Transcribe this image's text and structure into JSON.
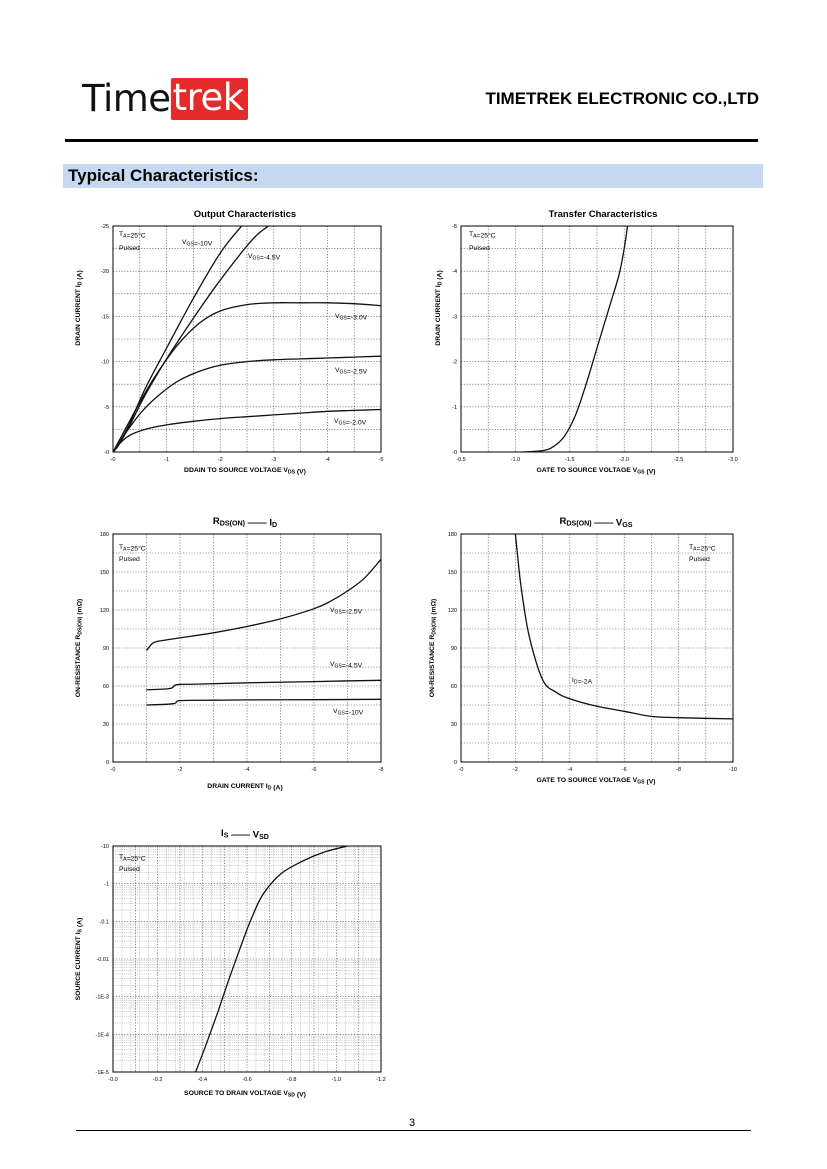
{
  "header": {
    "logo_part1": "Time",
    "logo_part2": "trek",
    "company": "TIMETREK ELECTRONIC CO.,LTD"
  },
  "section_title": "Typical Characteristics:",
  "page_number": "3",
  "chart_data": [
    {
      "type": "line",
      "title": "Output Characteristics",
      "xlabel": "DDAIN TO SOURCE VOLTAGE   V_DS   (V)",
      "ylabel": "DRAIN CURRENT   I_D   (A)",
      "xlim": [
        0,
        -5
      ],
      "ylim": [
        0,
        -25
      ],
      "xticks": [
        "-0",
        "-1",
        "-2",
        "-3",
        "-4",
        "-5"
      ],
      "yticks": [
        "-0",
        "-5",
        "-10",
        "-15",
        "-20",
        "-25"
      ],
      "annotations": [
        "T_A=25°C",
        "Pulsed"
      ],
      "series": [
        {
          "name": "V_GS=-10V",
          "x": [
            0,
            -0.1,
            -0.3,
            -0.6,
            -1.0,
            -1.5,
            -2.0,
            -2.4
          ],
          "y": [
            0,
            -0.8,
            -3,
            -7,
            -11.5,
            -17,
            -22,
            -25
          ]
        },
        {
          "name": "V_GS=-4.5V",
          "x": [
            0,
            -0.1,
            -0.3,
            -0.6,
            -1.0,
            -1.5,
            -2.0,
            -2.6,
            -2.9
          ],
          "y": [
            0,
            -0.7,
            -2.8,
            -6.3,
            -10.3,
            -14.8,
            -19,
            -23.5,
            -25
          ]
        },
        {
          "name": "V_GS=-3.0V",
          "x": [
            0,
            -0.2,
            -0.5,
            -0.8,
            -1.2,
            -1.6,
            -2.0,
            -2.5,
            -3.0,
            -3.5,
            -4.0,
            -4.5,
            -5.0
          ],
          "y": [
            0,
            -2.2,
            -5.5,
            -8.5,
            -11.8,
            -14.2,
            -15.6,
            -16.3,
            -16.5,
            -16.5,
            -16.5,
            -16.4,
            -16.2
          ]
        },
        {
          "name": "V_GS=-2.5V",
          "x": [
            0,
            -0.2,
            -0.5,
            -0.8,
            -1.2,
            -1.6,
            -2.0,
            -2.5,
            -3.0,
            -3.5,
            -4.0,
            -4.5,
            -5.0
          ],
          "y": [
            0,
            -1.8,
            -4.2,
            -6.0,
            -7.8,
            -8.9,
            -9.6,
            -10.0,
            -10.2,
            -10.3,
            -10.4,
            -10.5,
            -10.6
          ]
        },
        {
          "name": "V_GS=-2.0V",
          "x": [
            0,
            -0.1,
            -0.3,
            -0.6,
            -1.0,
            -1.5,
            -2.0,
            -2.5,
            -3.0,
            -3.5,
            -4.0,
            -4.5,
            -5.0
          ],
          "y": [
            0,
            -0.8,
            -1.8,
            -2.5,
            -3.0,
            -3.4,
            -3.7,
            -3.9,
            -4.1,
            -4.3,
            -4.5,
            -4.6,
            -4.7
          ]
        }
      ]
    },
    {
      "type": "line",
      "title": "Transfer Characteristics",
      "xlabel": "GATE TO SOURCE VOLTAGE   V_GS   (V)",
      "ylabel": "DRAIN CURRENT   I_D   (A)",
      "xlim": [
        -0.5,
        -3.0
      ],
      "ylim": [
        0,
        -5
      ],
      "xticks": [
        "-0.5",
        "-1.0",
        "-1.5",
        "-2.0",
        "-2.5",
        "-3.0"
      ],
      "yticks": [
        "-0",
        "-1",
        "-2",
        "-3",
        "-4",
        "-5"
      ],
      "annotations": [
        "T_A=25°C",
        "Pulsed"
      ],
      "series": [
        {
          "name": "",
          "x": [
            -1.05,
            -1.25,
            -1.35,
            -1.45,
            -1.55,
            -1.65,
            -1.75,
            -1.85,
            -1.95,
            -2.0,
            -2.03
          ],
          "y": [
            0,
            -0.03,
            -0.12,
            -0.35,
            -0.8,
            -1.5,
            -2.3,
            -3.1,
            -3.9,
            -4.5,
            -5.0
          ]
        }
      ]
    },
    {
      "type": "line",
      "title": "R_DS(ON) —— I_D",
      "xlabel": "DRAIN CURRENT   I_D   (A)",
      "ylabel": "ON-RESISTANCE   R_DS(ON)   (mΩ)",
      "xlim": [
        0,
        -8
      ],
      "ylim": [
        0,
        180
      ],
      "xticks": [
        "-0",
        "-2",
        "-4",
        "-6",
        "-8"
      ],
      "yticks": [
        "0",
        "30",
        "60",
        "90",
        "120",
        "150",
        "180"
      ],
      "annotations": [
        "T_A=25°C",
        "Pulsed"
      ],
      "series": [
        {
          "name": "V_GS=-2.5V",
          "x": [
            -1.0,
            -1.2,
            -1.5,
            -2.0,
            -3.0,
            -4.0,
            -5.0,
            -6.0,
            -6.5,
            -7.0,
            -7.5,
            -8.0
          ],
          "y": [
            88,
            94,
            96,
            98,
            102,
            107,
            113,
            121,
            127,
            135,
            145,
            160
          ]
        },
        {
          "name": "V_GS=-4.5V",
          "x": [
            -1.0,
            -1.7,
            -1.9,
            -2.5,
            -4.0,
            -6.0,
            -8.0
          ],
          "y": [
            57,
            58,
            61,
            61.5,
            62.5,
            63.5,
            64.5
          ]
        },
        {
          "name": "V_GS=-10V",
          "x": [
            -1.0,
            -1.8,
            -2.0,
            -3.0,
            -4.0,
            -6.0,
            -8.0
          ],
          "y": [
            45,
            46,
            48.5,
            48.8,
            49,
            49.2,
            49.5
          ]
        }
      ]
    },
    {
      "type": "line",
      "title": "R_DS(ON) —— V_GS",
      "xlabel": "GATE TO SOURCE VOLTAGE   V_GS   (V)",
      "ylabel": "ON-RESISTANCE   R_DS(ON)   (mΩ)",
      "xlim": [
        0,
        -10
      ],
      "ylim": [
        0,
        180
      ],
      "xticks": [
        "-0",
        "-2",
        "-4",
        "-6",
        "-8",
        "-10"
      ],
      "yticks": [
        "0",
        "30",
        "60",
        "90",
        "120",
        "150",
        "180"
      ],
      "annotations": [
        "T_A=25°C",
        "Pulsed",
        "I_D=-2A"
      ],
      "series": [
        {
          "name": "I_D=-2A",
          "x": [
            -2.0,
            -2.2,
            -2.5,
            -3.0,
            -3.5,
            -4.0,
            -5.0,
            -6.0,
            -7.0,
            -8.0,
            -10.0
          ],
          "y": [
            180,
            140,
            100,
            65,
            55,
            50,
            44,
            40,
            36,
            35,
            34
          ]
        }
      ]
    },
    {
      "type": "line",
      "title": "I_S —— V_SD",
      "xlabel": "SOURCE TO DRAIN VOLTAGE   V_SD   (V)",
      "ylabel": "SOURCE CURRENT   I_S   (A)",
      "xlim": [
        0,
        -1.2
      ],
      "ylim": [
        -1e-05,
        -10
      ],
      "yscale": "log",
      "xticks": [
        "-0.0",
        "-0.2",
        "-0.4",
        "-0.6",
        "-0.8",
        "-1.0",
        "-1.2"
      ],
      "yticks": [
        "-1E-5",
        "-1E-4",
        "-1E-3",
        "-0.01",
        "-0.1",
        "-1",
        "-10"
      ],
      "annotations": [
        "T_A=25°C",
        "Pulsed"
      ],
      "series": [
        {
          "name": "",
          "x": [
            -0.37,
            -0.42,
            -0.47,
            -0.52,
            -0.57,
            -0.62,
            -0.67,
            -0.75,
            -0.85,
            -0.95,
            -1.05
          ],
          "y": [
            -1e-05,
            -6e-05,
            -0.0004,
            -0.003,
            -0.02,
            -0.12,
            -0.5,
            -1.8,
            -4,
            -7,
            -10
          ]
        }
      ]
    }
  ]
}
